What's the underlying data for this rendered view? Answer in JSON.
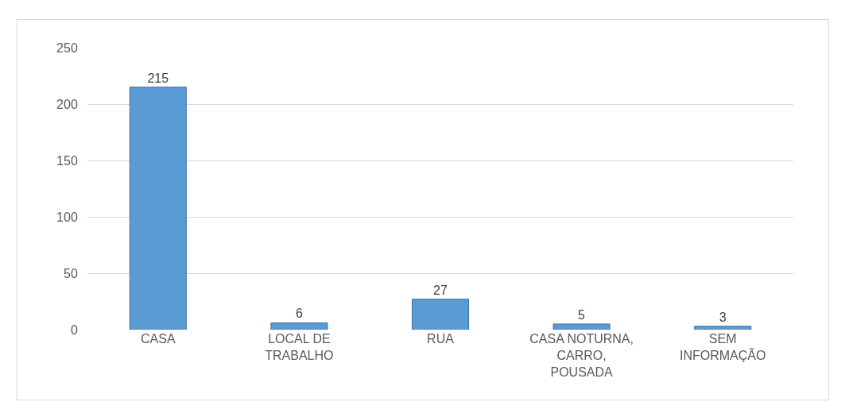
{
  "chart_data": {
    "type": "bar",
    "categories": [
      "CASA",
      "LOCAL DE TRABALHO",
      "RUA",
      "CASA NOTURNA, CARRO, POUSADA",
      "SEM INFORMAÇÃO"
    ],
    "values": [
      215,
      6,
      27,
      5,
      3
    ],
    "color": "#5b9bd5",
    "ylim": [
      0,
      250
    ],
    "yticks": [
      0,
      50,
      100,
      150,
      200,
      250
    ],
    "grid": "y",
    "data_labels": true
  }
}
